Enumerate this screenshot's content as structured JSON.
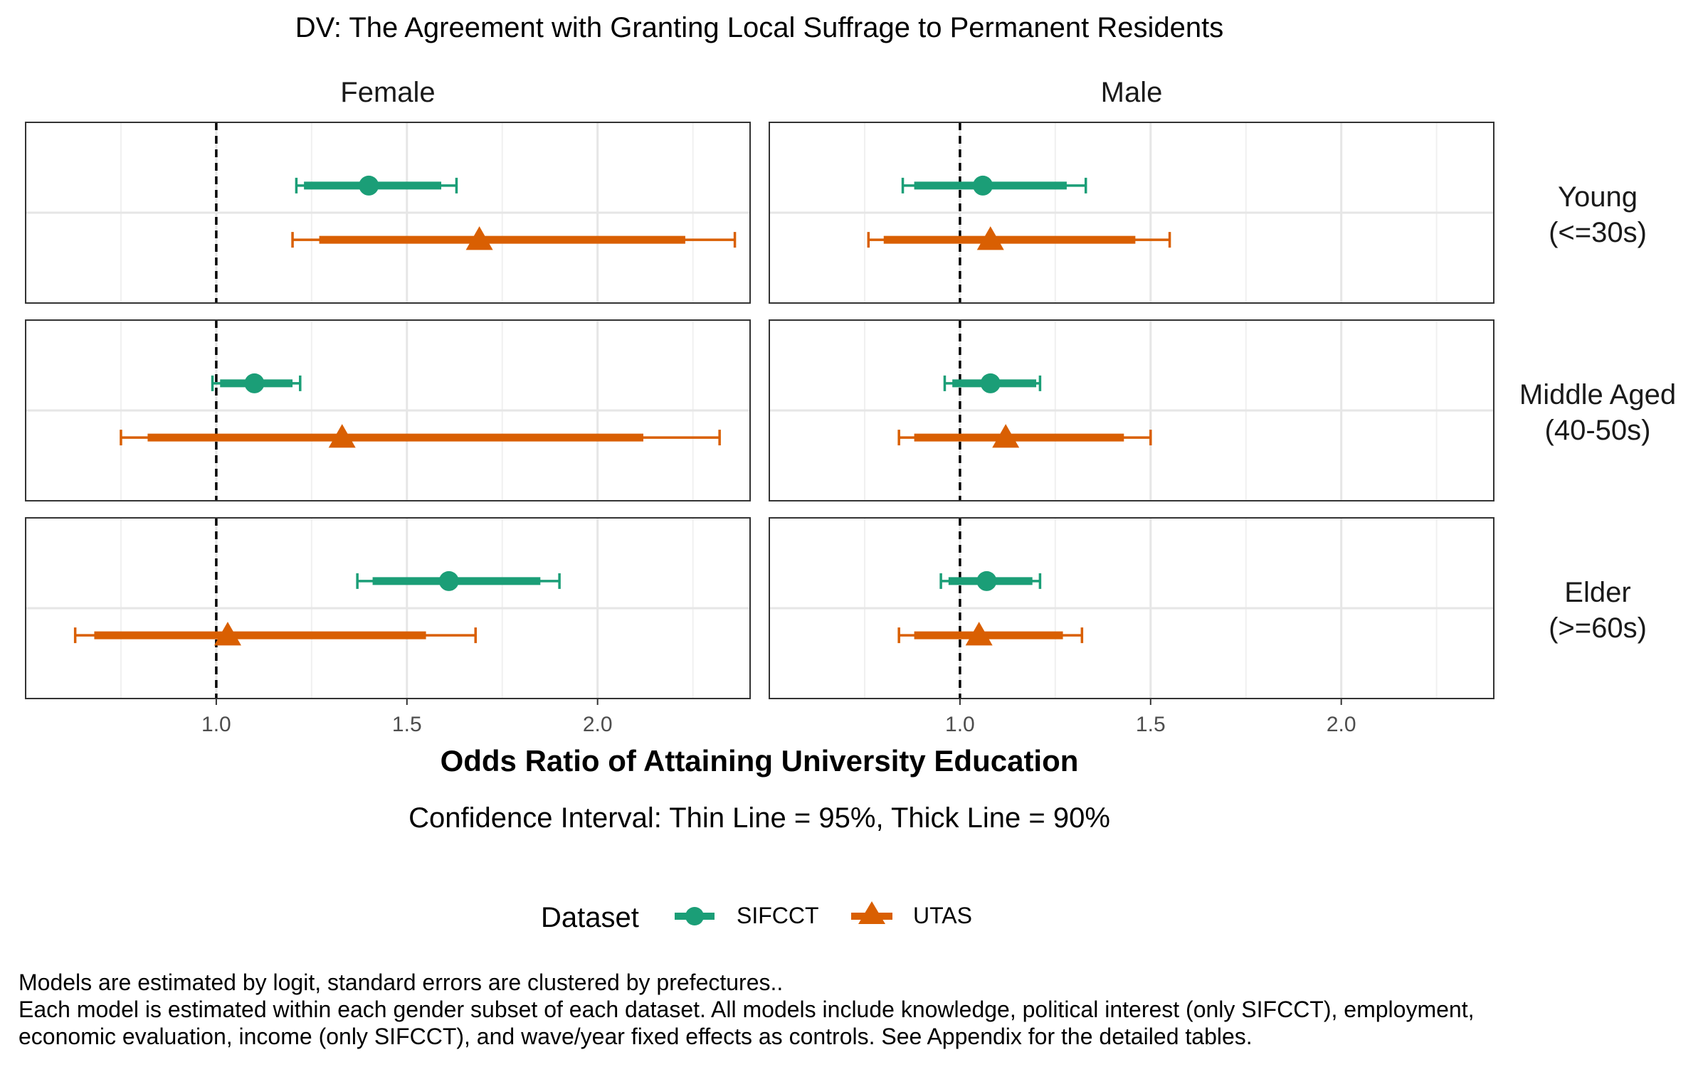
{
  "chart_data": {
    "type": "forest",
    "title": "DV: The Agreement with Granting Local Suffrage to Permanent Residents",
    "xlabel": "Odds Ratio of Attaining University Education",
    "subtitle": "Confidence Interval: Thin Line = 95%, Thick Line = 90%",
    "xlim": [
      0.5,
      2.4
    ],
    "xticks": [
      1.0,
      1.5,
      2.0
    ],
    "xtick_labels": [
      "1.0",
      "1.5",
      "2.0"
    ],
    "reference_line": 1.0,
    "grid": true,
    "columns": [
      "Female",
      "Male"
    ],
    "rows": [
      {
        "label_line1": "Young",
        "label_line2": "(<=30s)"
      },
      {
        "label_line1": "Middle Aged",
        "label_line2": "(40-50s)"
      },
      {
        "label_line1": "Elder",
        "label_line2": ">=60s)"
      }
    ],
    "legend": {
      "title": "Dataset",
      "position": "bottom",
      "entries": [
        {
          "name": "SIFCCT",
          "color": "#1b9e77",
          "shape": "circle"
        },
        {
          "name": "UTAS",
          "color": "#d95f02",
          "shape": "triangle"
        }
      ]
    },
    "panels": [
      {
        "row": 0,
        "col": 0,
        "estimates": [
          {
            "dataset": "SIFCCT",
            "or": 1.4,
            "ci90": [
              1.23,
              1.59
            ],
            "ci95": [
              1.21,
              1.63
            ]
          },
          {
            "dataset": "UTAS",
            "or": 1.69,
            "ci90": [
              1.27,
              2.23
            ],
            "ci95": [
              1.2,
              2.36
            ]
          }
        ]
      },
      {
        "row": 0,
        "col": 1,
        "estimates": [
          {
            "dataset": "SIFCCT",
            "or": 1.06,
            "ci90": [
              0.88,
              1.28
            ],
            "ci95": [
              0.85,
              1.33
            ]
          },
          {
            "dataset": "UTAS",
            "or": 1.08,
            "ci90": [
              0.8,
              1.46
            ],
            "ci95": [
              0.76,
              1.55
            ]
          }
        ]
      },
      {
        "row": 1,
        "col": 0,
        "estimates": [
          {
            "dataset": "SIFCCT",
            "or": 1.1,
            "ci90": [
              1.01,
              1.2
            ],
            "ci95": [
              0.99,
              1.22
            ]
          },
          {
            "dataset": "UTAS",
            "or": 1.33,
            "ci90": [
              0.82,
              2.12
            ],
            "ci95": [
              0.75,
              2.32
            ]
          }
        ]
      },
      {
        "row": 1,
        "col": 1,
        "estimates": [
          {
            "dataset": "SIFCCT",
            "or": 1.08,
            "ci90": [
              0.98,
              1.2
            ],
            "ci95": [
              0.96,
              1.21
            ]
          },
          {
            "dataset": "UTAS",
            "or": 1.12,
            "ci90": [
              0.88,
              1.43
            ],
            "ci95": [
              0.84,
              1.5
            ]
          }
        ]
      },
      {
        "row": 2,
        "col": 0,
        "estimates": [
          {
            "dataset": "SIFCCT",
            "or": 1.61,
            "ci90": [
              1.41,
              1.85
            ],
            "ci95": [
              1.37,
              1.9
            ]
          },
          {
            "dataset": "UTAS",
            "or": 1.03,
            "ci90": [
              0.68,
              1.55
            ],
            "ci95": [
              0.63,
              1.68
            ]
          }
        ]
      },
      {
        "row": 2,
        "col": 1,
        "estimates": [
          {
            "dataset": "SIFCCT",
            "or": 1.07,
            "ci90": [
              0.97,
              1.19
            ],
            "ci95": [
              0.95,
              1.21
            ]
          },
          {
            "dataset": "UTAS",
            "or": 1.05,
            "ci90": [
              0.88,
              1.27
            ],
            "ci95": [
              0.84,
              1.32
            ]
          }
        ]
      }
    ]
  },
  "caption": {
    "line1": "Models are estimated by logit, standard errors are clustered by prefectures..",
    "line2": "Each model is estimated within each gender subset of each dataset. All models include knowledge, political interest (only SIFCCT), employment,",
    "line3": "economic evaluation, income (only SIFCCT), and wave/year fixed effects as controls. See Appendix for the detailed tables."
  }
}
